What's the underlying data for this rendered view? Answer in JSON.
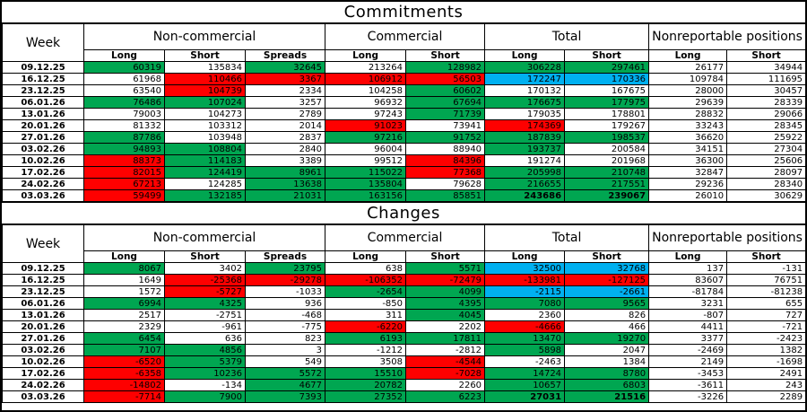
{
  "cell_colors": {
    "g": "#00a651",
    "r": "#fe0000",
    "b": "#00b0f0",
    "default": "#ffffff",
    "border": "#000000"
  },
  "chart_data": [
    {
      "type": "table",
      "title": "Commitments",
      "week_header": "Week",
      "groups": [
        {
          "label": "Non-commercial",
          "cols": [
            "Long",
            "Short",
            "Spreads"
          ]
        },
        {
          "label": "Commercial",
          "cols": [
            "Long",
            "Short"
          ]
        },
        {
          "label": "Total",
          "cols": [
            "Long",
            "Short"
          ]
        },
        {
          "label": "Nonreportable positions",
          "cols": [
            "Long",
            "Short"
          ]
        }
      ],
      "rows": [
        {
          "week": "09.12.25",
          "cells": [
            [
              "60319",
              "g"
            ],
            [
              "135834",
              ""
            ],
            [
              "32645",
              "g"
            ],
            [
              "213264",
              ""
            ],
            [
              "128982",
              "g"
            ],
            [
              "306228",
              "g"
            ],
            [
              "297461",
              "g"
            ],
            [
              "26177",
              ""
            ],
            [
              "34944",
              ""
            ]
          ]
        },
        {
          "week": "16.12.25",
          "cells": [
            [
              "61968",
              ""
            ],
            [
              "110466",
              "r"
            ],
            [
              "3367",
              "r"
            ],
            [
              "106912",
              "r"
            ],
            [
              "56503",
              "r"
            ],
            [
              "172247",
              "b"
            ],
            [
              "170336",
              "b"
            ],
            [
              "109784",
              ""
            ],
            [
              "111695",
              ""
            ]
          ]
        },
        {
          "week": "23.12.25",
          "cells": [
            [
              "63540",
              ""
            ],
            [
              "104739",
              "r"
            ],
            [
              "2334",
              ""
            ],
            [
              "104258",
              ""
            ],
            [
              "60602",
              "g"
            ],
            [
              "170132",
              ""
            ],
            [
              "167675",
              ""
            ],
            [
              "28000",
              ""
            ],
            [
              "30457",
              ""
            ]
          ]
        },
        {
          "week": "06.01.26",
          "cells": [
            [
              "76486",
              "g"
            ],
            [
              "107024",
              "g"
            ],
            [
              "3257",
              ""
            ],
            [
              "96932",
              ""
            ],
            [
              "67694",
              "g"
            ],
            [
              "176675",
              "g"
            ],
            [
              "177975",
              "g"
            ],
            [
              "29639",
              ""
            ],
            [
              "28339",
              ""
            ]
          ]
        },
        {
          "week": "13.01.26",
          "cells": [
            [
              "79003",
              ""
            ],
            [
              "104273",
              ""
            ],
            [
              "2789",
              ""
            ],
            [
              "97243",
              ""
            ],
            [
              "71739",
              "g"
            ],
            [
              "179035",
              ""
            ],
            [
              "178801",
              ""
            ],
            [
              "28832",
              ""
            ],
            [
              "29066",
              ""
            ]
          ]
        },
        {
          "week": "20.01.26",
          "cells": [
            [
              "81332",
              ""
            ],
            [
              "103312",
              ""
            ],
            [
              "2014",
              ""
            ],
            [
              "91023",
              "r"
            ],
            [
              "73941",
              ""
            ],
            [
              "174369",
              "r"
            ],
            [
              "179267",
              ""
            ],
            [
              "33243",
              ""
            ],
            [
              "28345",
              ""
            ]
          ]
        },
        {
          "week": "27.01.26",
          "cells": [
            [
              "87786",
              "g"
            ],
            [
              "103948",
              ""
            ],
            [
              "2837",
              ""
            ],
            [
              "97216",
              "g"
            ],
            [
              "91752",
              "g"
            ],
            [
              "187839",
              "g"
            ],
            [
              "198537",
              "g"
            ],
            [
              "36620",
              ""
            ],
            [
              "25922",
              ""
            ]
          ]
        },
        {
          "week": "03.02.26",
          "cells": [
            [
              "94893",
              "g"
            ],
            [
              "108804",
              "g"
            ],
            [
              "2840",
              ""
            ],
            [
              "96004",
              ""
            ],
            [
              "88940",
              ""
            ],
            [
              "193737",
              "g"
            ],
            [
              "200584",
              ""
            ],
            [
              "34151",
              ""
            ],
            [
              "27304",
              ""
            ]
          ]
        },
        {
          "week": "10.02.26",
          "cells": [
            [
              "88373",
              "r"
            ],
            [
              "114183",
              "g"
            ],
            [
              "3389",
              ""
            ],
            [
              "99512",
              ""
            ],
            [
              "84396",
              "r"
            ],
            [
              "191274",
              ""
            ],
            [
              "201968",
              ""
            ],
            [
              "36300",
              ""
            ],
            [
              "25606",
              ""
            ]
          ]
        },
        {
          "week": "17.02.26",
          "cells": [
            [
              "82015",
              "r"
            ],
            [
              "124419",
              "g"
            ],
            [
              "8961",
              "g"
            ],
            [
              "115022",
              "g"
            ],
            [
              "77368",
              "r"
            ],
            [
              "205998",
              "g"
            ],
            [
              "210748",
              "g"
            ],
            [
              "32847",
              ""
            ],
            [
              "28097",
              ""
            ]
          ]
        },
        {
          "week": "24.02.26",
          "cells": [
            [
              "67213",
              "r"
            ],
            [
              "124285",
              ""
            ],
            [
              "13638",
              "g"
            ],
            [
              "135804",
              "g"
            ],
            [
              "79628",
              ""
            ],
            [
              "216655",
              "g"
            ],
            [
              "217551",
              "g"
            ],
            [
              "29236",
              ""
            ],
            [
              "28340",
              ""
            ]
          ]
        },
        {
          "week": "03.03.26",
          "cells": [
            [
              "59499",
              "r"
            ],
            [
              "132185",
              "g"
            ],
            [
              "21031",
              "g"
            ],
            [
              "163156",
              "g"
            ],
            [
              "85851",
              "g"
            ],
            [
              "243686",
              "gB"
            ],
            [
              "239067",
              "gB"
            ],
            [
              "26010",
              ""
            ],
            [
              "30629",
              ""
            ]
          ]
        }
      ]
    },
    {
      "type": "table",
      "title": "Changes",
      "week_header": "Week",
      "groups": [
        {
          "label": "Non-commercial",
          "cols": [
            "Long",
            "Short",
            "Spreads"
          ]
        },
        {
          "label": "Commercial",
          "cols": [
            "Long",
            "Short"
          ]
        },
        {
          "label": "Total",
          "cols": [
            "Long",
            "Short"
          ]
        },
        {
          "label": "Nonreportable positions",
          "cols": [
            "Long",
            "Short"
          ]
        }
      ],
      "rows": [
        {
          "week": "09.12.25",
          "cells": [
            [
              "8067",
              "g"
            ],
            [
              "3402",
              ""
            ],
            [
              "23795",
              "g"
            ],
            [
              "638",
              ""
            ],
            [
              "5571",
              "g"
            ],
            [
              "32500",
              "b"
            ],
            [
              "32768",
              "b"
            ],
            [
              "137",
              ""
            ],
            [
              "-131",
              ""
            ]
          ]
        },
        {
          "week": "16.12.25",
          "cells": [
            [
              "1649",
              ""
            ],
            [
              "-25368",
              "r"
            ],
            [
              "-29278",
              "r"
            ],
            [
              "-106352",
              "r"
            ],
            [
              "-72479",
              "r"
            ],
            [
              "-133981",
              "r"
            ],
            [
              "-127125",
              "r"
            ],
            [
              "83607",
              ""
            ],
            [
              "76751",
              ""
            ]
          ]
        },
        {
          "week": "23.12.25",
          "cells": [
            [
              "1572",
              ""
            ],
            [
              "-5727",
              "r"
            ],
            [
              "-1033",
              ""
            ],
            [
              "-2654",
              "g"
            ],
            [
              "4099",
              "g"
            ],
            [
              "-2115",
              "b"
            ],
            [
              "-2661",
              "b"
            ],
            [
              "-81784",
              ""
            ],
            [
              "-81238",
              ""
            ]
          ]
        },
        {
          "week": "06.01.26",
          "cells": [
            [
              "6994",
              "g"
            ],
            [
              "4325",
              "g"
            ],
            [
              "936",
              ""
            ],
            [
              "-850",
              ""
            ],
            [
              "4395",
              "g"
            ],
            [
              "7080",
              "g"
            ],
            [
              "9565",
              "g"
            ],
            [
              "3231",
              ""
            ],
            [
              "655",
              ""
            ]
          ]
        },
        {
          "week": "13.01.26",
          "cells": [
            [
              "2517",
              ""
            ],
            [
              "-2751",
              ""
            ],
            [
              "-468",
              ""
            ],
            [
              "311",
              ""
            ],
            [
              "4045",
              "g"
            ],
            [
              "2360",
              ""
            ],
            [
              "826",
              ""
            ],
            [
              "-807",
              ""
            ],
            [
              "727",
              ""
            ]
          ]
        },
        {
          "week": "20.01.26",
          "cells": [
            [
              "2329",
              ""
            ],
            [
              "-961",
              ""
            ],
            [
              "-775",
              ""
            ],
            [
              "-6220",
              "r"
            ],
            [
              "2202",
              ""
            ],
            [
              "-4666",
              "r"
            ],
            [
              "466",
              ""
            ],
            [
              "4411",
              ""
            ],
            [
              "-721",
              ""
            ]
          ]
        },
        {
          "week": "27.01.26",
          "cells": [
            [
              "6454",
              "g"
            ],
            [
              "636",
              ""
            ],
            [
              "823",
              ""
            ],
            [
              "6193",
              "g"
            ],
            [
              "17811",
              "g"
            ],
            [
              "13470",
              "g"
            ],
            [
              "19270",
              "g"
            ],
            [
              "3377",
              ""
            ],
            [
              "-2423",
              ""
            ]
          ]
        },
        {
          "week": "03.02.26",
          "cells": [
            [
              "7107",
              "g"
            ],
            [
              "4856",
              "g"
            ],
            [
              "3",
              ""
            ],
            [
              "-1212",
              ""
            ],
            [
              "-2812",
              ""
            ],
            [
              "5898",
              "g"
            ],
            [
              "2047",
              ""
            ],
            [
              "-2469",
              ""
            ],
            [
              "1382",
              ""
            ]
          ]
        },
        {
          "week": "10.02.26",
          "cells": [
            [
              "-6520",
              "r"
            ],
            [
              "5379",
              "g"
            ],
            [
              "549",
              ""
            ],
            [
              "3508",
              ""
            ],
            [
              "-4544",
              "r"
            ],
            [
              "-2463",
              ""
            ],
            [
              "1384",
              ""
            ],
            [
              "2149",
              ""
            ],
            [
              "-1698",
              ""
            ]
          ]
        },
        {
          "week": "17.02.26",
          "cells": [
            [
              "-6358",
              "r"
            ],
            [
              "10236",
              "g"
            ],
            [
              "5572",
              "g"
            ],
            [
              "15510",
              "g"
            ],
            [
              "-7028",
              "r"
            ],
            [
              "14724",
              "g"
            ],
            [
              "8780",
              "g"
            ],
            [
              "-3453",
              ""
            ],
            [
              "2491",
              ""
            ]
          ]
        },
        {
          "week": "24.02.26",
          "cells": [
            [
              "-14802",
              "r"
            ],
            [
              "-134",
              ""
            ],
            [
              "4677",
              "g"
            ],
            [
              "20782",
              "g"
            ],
            [
              "2260",
              ""
            ],
            [
              "10657",
              "g"
            ],
            [
              "6803",
              "g"
            ],
            [
              "-3611",
              ""
            ],
            [
              "243",
              ""
            ]
          ]
        },
        {
          "week": "03.03.26",
          "cells": [
            [
              "-7714",
              "r"
            ],
            [
              "7900",
              "g"
            ],
            [
              "7393",
              "g"
            ],
            [
              "27352",
              "g"
            ],
            [
              "6223",
              "g"
            ],
            [
              "27031",
              "gB"
            ],
            [
              "21516",
              "gB"
            ],
            [
              "-3226",
              ""
            ],
            [
              "2289",
              ""
            ]
          ]
        }
      ]
    }
  ]
}
